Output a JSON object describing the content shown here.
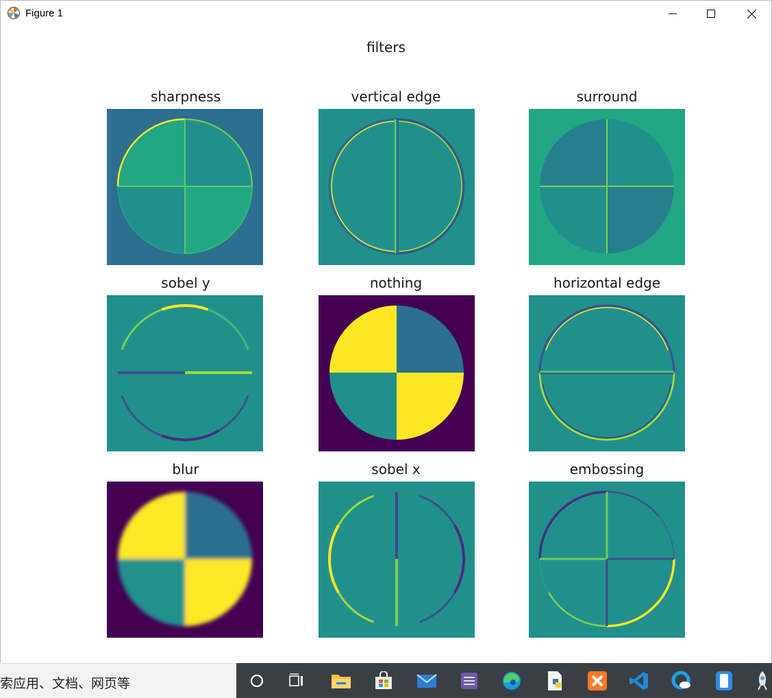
{
  "window": {
    "title": "Figure 1"
  },
  "figure": {
    "suptitle": "filters",
    "panels": [
      {
        "title": "sharpness",
        "kind": "sharpness"
      },
      {
        "title": "vertical edge",
        "kind": "vertical"
      },
      {
        "title": "surround",
        "kind": "surround"
      },
      {
        "title": "sobel y",
        "kind": "sobely"
      },
      {
        "title": "nothing",
        "kind": "nothing"
      },
      {
        "title": "horizontal edge",
        "kind": "horizontal"
      },
      {
        "title": "blur",
        "kind": "blur"
      },
      {
        "title": "sobel x",
        "kind": "sobelx"
      },
      {
        "title": "embossing",
        "kind": "emboss"
      }
    ]
  },
  "colors": {
    "viridis_dark": "#440154",
    "viridis_blue": "#2c6f8e",
    "viridis_teal": "#21908d",
    "viridis_green": "#22a784",
    "viridis_yellow": "#fde725"
  },
  "taskbar": {
    "search_text": "索应用、文档、网页等",
    "icons": [
      "cortana-circle-icon",
      "task-view-icon",
      "file-explorer-icon",
      "store-icon",
      "mail-icon",
      "app-icon",
      "edge-icon",
      "python-file-icon",
      "xampp-icon",
      "vscode-icon",
      "cloud-app-icon",
      "phone-link-icon",
      "rocket-icon"
    ]
  }
}
